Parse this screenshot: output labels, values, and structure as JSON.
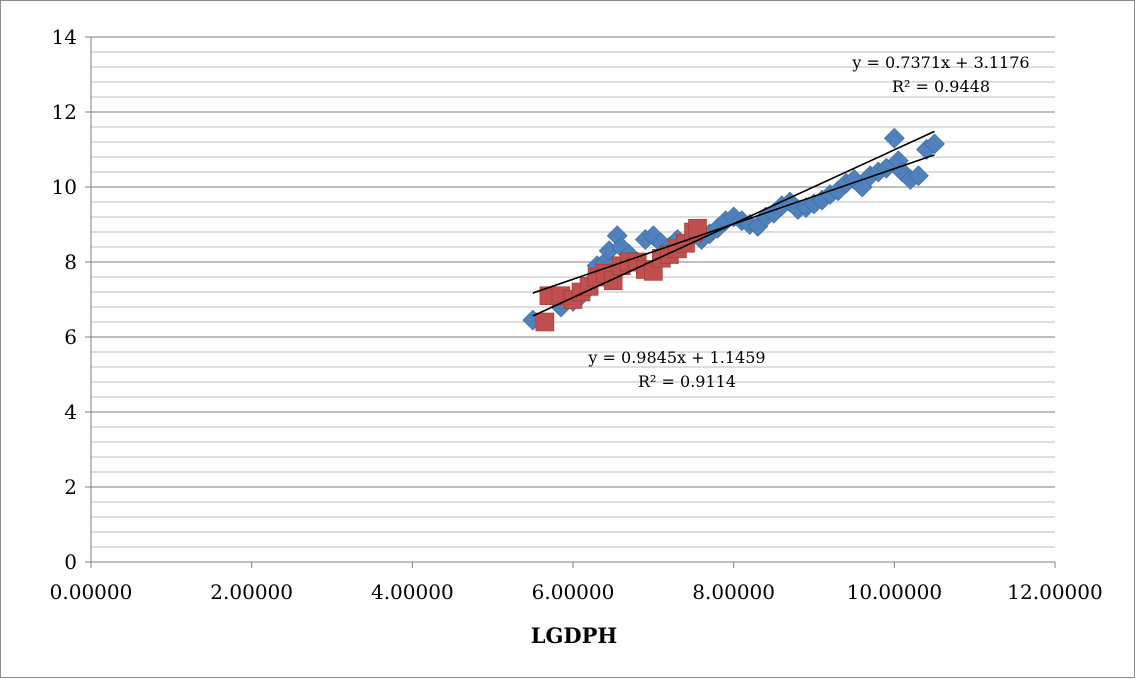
{
  "chart_data": {
    "type": "scatter",
    "title": "",
    "xlabel": "LGDPH",
    "ylabel": "",
    "xlim": [
      0,
      12
    ],
    "ylim": [
      0,
      14
    ],
    "x_ticks": [
      "0.00000",
      "2.00000",
      "4.00000",
      "6.00000",
      "8.00000",
      "10.00000",
      "12.00000"
    ],
    "y_ticks": [
      "0",
      "2",
      "4",
      "6",
      "8",
      "10",
      "12",
      "14"
    ],
    "grid": "horizontal major and minor",
    "legend": "none",
    "series": [
      {
        "marker": "diamond",
        "color": "#4f81bd",
        "x": [
          5.5,
          5.85,
          6.0,
          6.1,
          6.2,
          6.3,
          6.4,
          6.45,
          6.55,
          6.6,
          6.7,
          6.8,
          6.9,
          7.0,
          7.1,
          7.2,
          7.3,
          7.4,
          7.5,
          7.6,
          7.7,
          7.8,
          7.9,
          8.0,
          8.1,
          8.2,
          8.3,
          8.4,
          8.5,
          8.6,
          8.7,
          8.8,
          8.9,
          9.0,
          9.1,
          9.2,
          9.3,
          9.4,
          9.5,
          9.6,
          9.7,
          9.8,
          9.9,
          10.0,
          10.05,
          10.1,
          10.2,
          10.3,
          10.4,
          10.5
        ],
        "y": [
          6.45,
          6.8,
          6.95,
          7.1,
          7.4,
          7.9,
          8.0,
          8.3,
          8.7,
          8.4,
          8.2,
          8.0,
          8.6,
          8.7,
          8.5,
          8.4,
          8.6,
          8.5,
          8.7,
          8.6,
          8.75,
          8.9,
          9.1,
          9.2,
          9.1,
          9.0,
          8.95,
          9.2,
          9.3,
          9.5,
          9.6,
          9.4,
          9.45,
          9.55,
          9.65,
          9.8,
          9.9,
          10.1,
          10.2,
          10.0,
          10.3,
          10.4,
          10.5,
          11.3,
          10.7,
          10.4,
          10.2,
          10.3,
          11.0,
          11.15
        ]
      },
      {
        "marker": "square",
        "color": "#c0504d",
        "x": [
          5.65,
          5.7,
          5.85,
          6.0,
          6.1,
          6.2,
          6.3,
          6.4,
          6.5,
          6.6,
          6.7,
          6.8,
          6.9,
          7.0,
          7.1,
          7.2,
          7.3,
          7.4,
          7.5,
          7.55
        ],
        "y": [
          6.4,
          7.1,
          7.1,
          7.0,
          7.2,
          7.35,
          7.6,
          7.7,
          7.5,
          7.9,
          8.0,
          8.0,
          7.8,
          7.75,
          8.1,
          8.2,
          8.35,
          8.5,
          8.8,
          8.9
        ]
      }
    ],
    "trendlines": [
      {
        "equation": "y = 0.7371x + 3.1176",
        "r2": "R² = 0.9448",
        "slope": 0.7371,
        "intercept": 3.1176,
        "x_range": [
          5.5,
          10.5
        ]
      },
      {
        "equation": "y = 0.9845x + 1.1459",
        "r2": "R² = 0.9114",
        "slope": 0.9845,
        "intercept": 1.1459,
        "x_range": [
          5.5,
          10.5
        ]
      }
    ]
  }
}
